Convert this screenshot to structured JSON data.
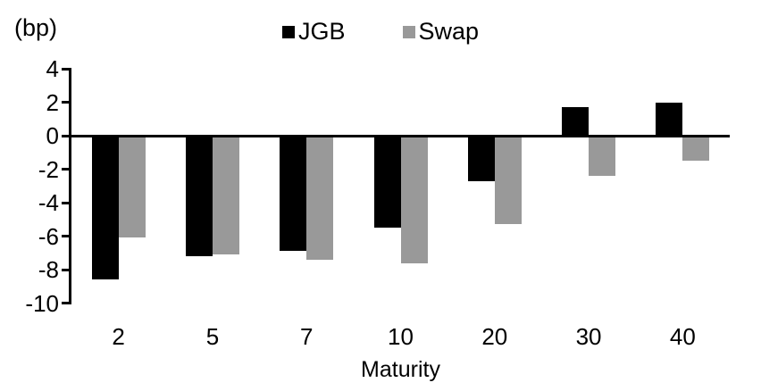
{
  "chart_data": {
    "type": "bar",
    "title": "",
    "unit_label": "(bp)",
    "xlabel": "Maturity",
    "categories": [
      "2",
      "5",
      "7",
      "10",
      "20",
      "30",
      "40"
    ],
    "series": [
      {
        "name": "JGB",
        "color": "#000000",
        "values": [
          -8.6,
          -7.2,
          -6.9,
          -5.5,
          -2.7,
          1.7,
          2.0
        ]
      },
      {
        "name": "Swap",
        "color": "#999999",
        "values": [
          -6.1,
          -7.1,
          -7.4,
          -7.6,
          -5.3,
          -2.4,
          -1.5
        ]
      }
    ],
    "ylim": [
      -10,
      4
    ],
    "yticks": [
      4,
      2,
      0,
      -2,
      -4,
      -6,
      -8,
      -10
    ],
    "legend_position": "top-center",
    "grid": false,
    "background_color": "#ffffff",
    "text_color": "#000000"
  }
}
